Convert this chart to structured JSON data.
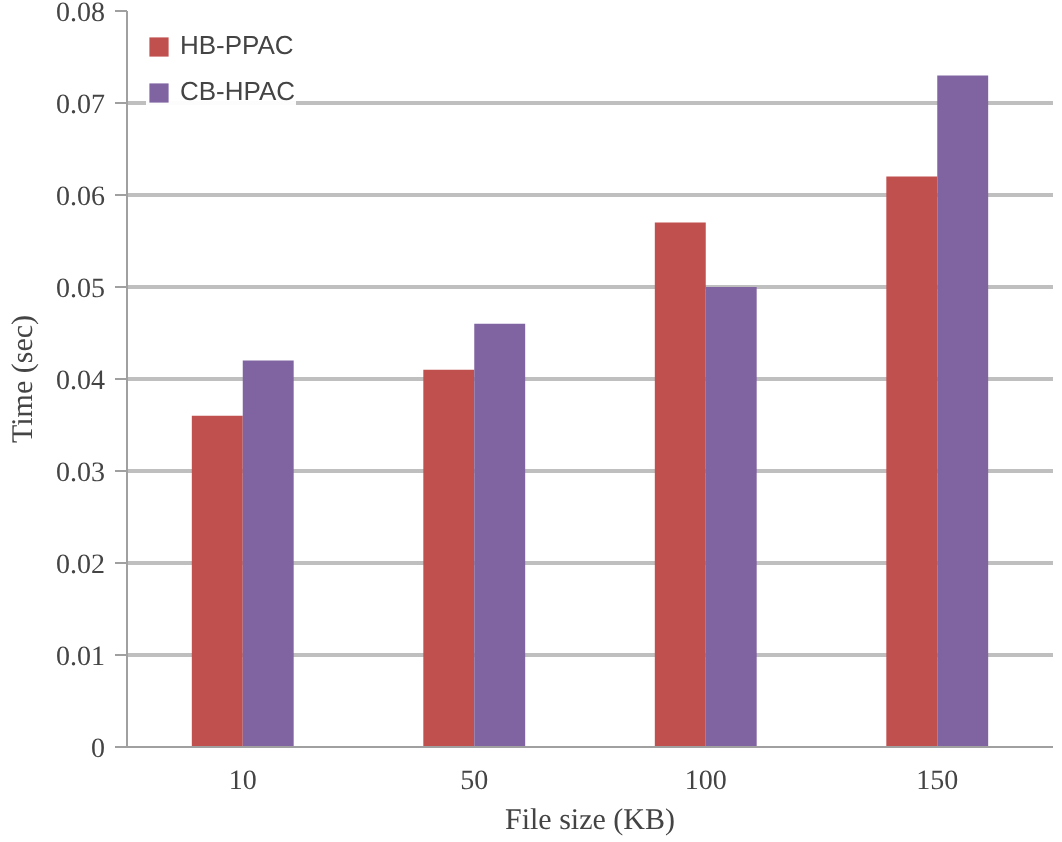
{
  "chart_data": {
    "type": "bar",
    "xlabel": "File size (KB)",
    "ylabel": "Time (sec)",
    "categories": [
      "10",
      "50",
      "100",
      "150"
    ],
    "series": [
      {
        "name": "HB-PPAC",
        "color": "#c0504d",
        "values": [
          0.036,
          0.041,
          0.057,
          0.062
        ]
      },
      {
        "name": "CB-HPAC",
        "color": "#8064a2",
        "values": [
          0.042,
          0.046,
          0.05,
          0.073
        ]
      }
    ],
    "ylim": [
      0,
      0.08
    ],
    "yticks": [
      0,
      0.01,
      0.02,
      0.03,
      0.04,
      0.05,
      0.06,
      0.07,
      0.08
    ],
    "grid": "y",
    "legend": "top left"
  }
}
